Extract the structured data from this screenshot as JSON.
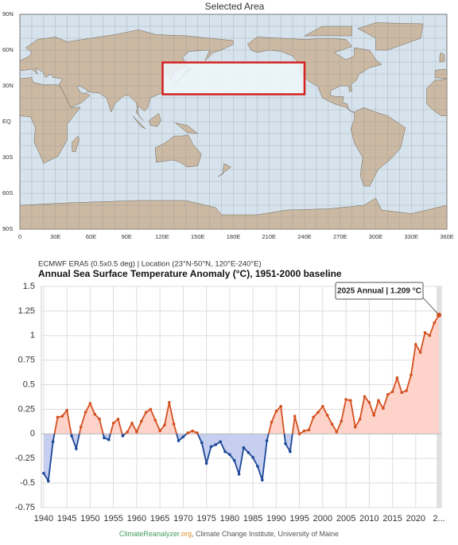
{
  "map": {
    "title": "Selected Area",
    "lat_labels": [
      "90N",
      "60N",
      "30N",
      "EQ",
      "30S",
      "60S",
      "90S"
    ],
    "lon_labels": [
      "0",
      "30E",
      "60E",
      "90E",
      "120E",
      "150E",
      "180E",
      "210E",
      "240E",
      "270E",
      "300E",
      "330E",
      "360E"
    ]
  },
  "chart_data": {
    "type": "line",
    "subtitle": "ECMWF ERA5 (0.5x0.5 deg) | Location (23°N-50°N, 120°E-240°E)",
    "title": "Annual Sea Surface Temperature Anomaly (°C), 1951-2000 baseline",
    "annotation": "2025 Annual | 1.209 °C",
    "x": [
      1940,
      1941,
      1942,
      1943,
      1944,
      1945,
      1946,
      1947,
      1948,
      1949,
      1950,
      1951,
      1952,
      1953,
      1954,
      1955,
      1956,
      1957,
      1958,
      1959,
      1960,
      1961,
      1962,
      1963,
      1964,
      1965,
      1966,
      1967,
      1968,
      1969,
      1970,
      1971,
      1972,
      1973,
      1974,
      1975,
      1976,
      1977,
      1978,
      1979,
      1980,
      1981,
      1982,
      1983,
      1984,
      1985,
      1986,
      1987,
      1988,
      1989,
      1990,
      1991,
      1992,
      1993,
      1994,
      1995,
      1996,
      1997,
      1998,
      1999,
      2000,
      2001,
      2002,
      2003,
      2004,
      2005,
      2006,
      2007,
      2008,
      2009,
      2010,
      2011,
      2012,
      2013,
      2014,
      2015,
      2016,
      2017,
      2018,
      2019,
      2020,
      2021,
      2022,
      2023,
      2024,
      2025
    ],
    "values": [
      -0.4,
      -0.48,
      -0.08,
      0.17,
      0.18,
      0.24,
      -0.02,
      -0.15,
      0.07,
      0.22,
      0.31,
      0.2,
      0.15,
      -0.04,
      -0.06,
      0.11,
      0.15,
      -0.02,
      0.02,
      0.11,
      0.02,
      0.13,
      0.22,
      0.25,
      0.14,
      0.03,
      0.09,
      0.32,
      0.1,
      -0.07,
      -0.03,
      0.01,
      0.03,
      0.01,
      -0.09,
      -0.3,
      -0.13,
      -0.11,
      -0.08,
      -0.18,
      -0.21,
      -0.27,
      -0.41,
      -0.14,
      -0.19,
      -0.24,
      -0.33,
      -0.47,
      -0.07,
      0.12,
      0.23,
      0.28,
      -0.1,
      -0.18,
      0.18,
      0.0,
      0.03,
      0.04,
      0.17,
      0.22,
      0.28,
      0.19,
      0.1,
      0.02,
      0.13,
      0.35,
      0.34,
      0.07,
      0.15,
      0.38,
      0.32,
      0.19,
      0.34,
      0.26,
      0.4,
      0.43,
      0.57,
      0.42,
      0.44,
      0.6,
      0.91,
      0.83,
      1.03,
      1.0,
      1.13,
      1.209
    ],
    "positive_color": "#d4501f",
    "negative_color": "#1c4797",
    "positive_fill": "#fdd3ca",
    "negative_fill": "#c7cff0",
    "xlim": [
      1939.5,
      2025.5
    ],
    "ylim": [
      -0.75,
      1.5
    ],
    "xticks": [
      1940,
      1945,
      1950,
      1955,
      1960,
      1965,
      1970,
      1975,
      1980,
      1985,
      1990,
      1995,
      2000,
      2005,
      2010,
      2015,
      2020,
      {
        "value": 2025,
        "label": "2..."
      }
    ],
    "yticks": [
      1.5,
      1.25,
      1,
      0.75,
      0.5,
      0.25,
      0,
      -0.25,
      -0.5,
      -0.75
    ],
    "grid": true,
    "footer": [
      "ClimateReanalyzer",
      ".org",
      ", Climate Change Institute, University of Maine"
    ]
  }
}
